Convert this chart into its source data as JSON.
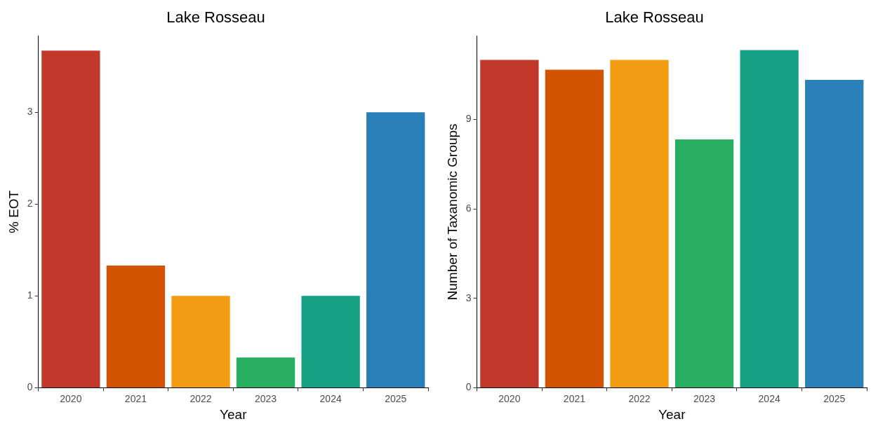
{
  "chart_data": [
    {
      "type": "bar",
      "title": "Lake Rosseau",
      "xlabel": "Year",
      "ylabel": "% EOT",
      "categories": [
        "2020",
        "2021",
        "2022",
        "2023",
        "2024",
        "2025"
      ],
      "values": [
        3.67,
        1.33,
        1.0,
        0.33,
        1.0,
        3.0
      ],
      "colors": [
        "#c0392b",
        "#d35400",
        "#f39c12",
        "#27ae60",
        "#16a085",
        "#2980b9"
      ],
      "ylim": [
        0,
        3.83
      ],
      "yticks": [
        0,
        1,
        2,
        3
      ]
    },
    {
      "type": "bar",
      "title": "Lake Rosseau",
      "xlabel": "Year",
      "ylabel": "Number of Taxanomic Groups",
      "categories": [
        "2020",
        "2021",
        "2022",
        "2023",
        "2024",
        "2025"
      ],
      "values": [
        11.0,
        10.67,
        11.0,
        8.33,
        11.33,
        10.33
      ],
      "colors": [
        "#c0392b",
        "#d35400",
        "#f39c12",
        "#27ae60",
        "#16a085",
        "#2980b9"
      ],
      "ylim": [
        0,
        11.8
      ],
      "yticks": [
        0,
        3,
        6,
        9
      ]
    }
  ]
}
